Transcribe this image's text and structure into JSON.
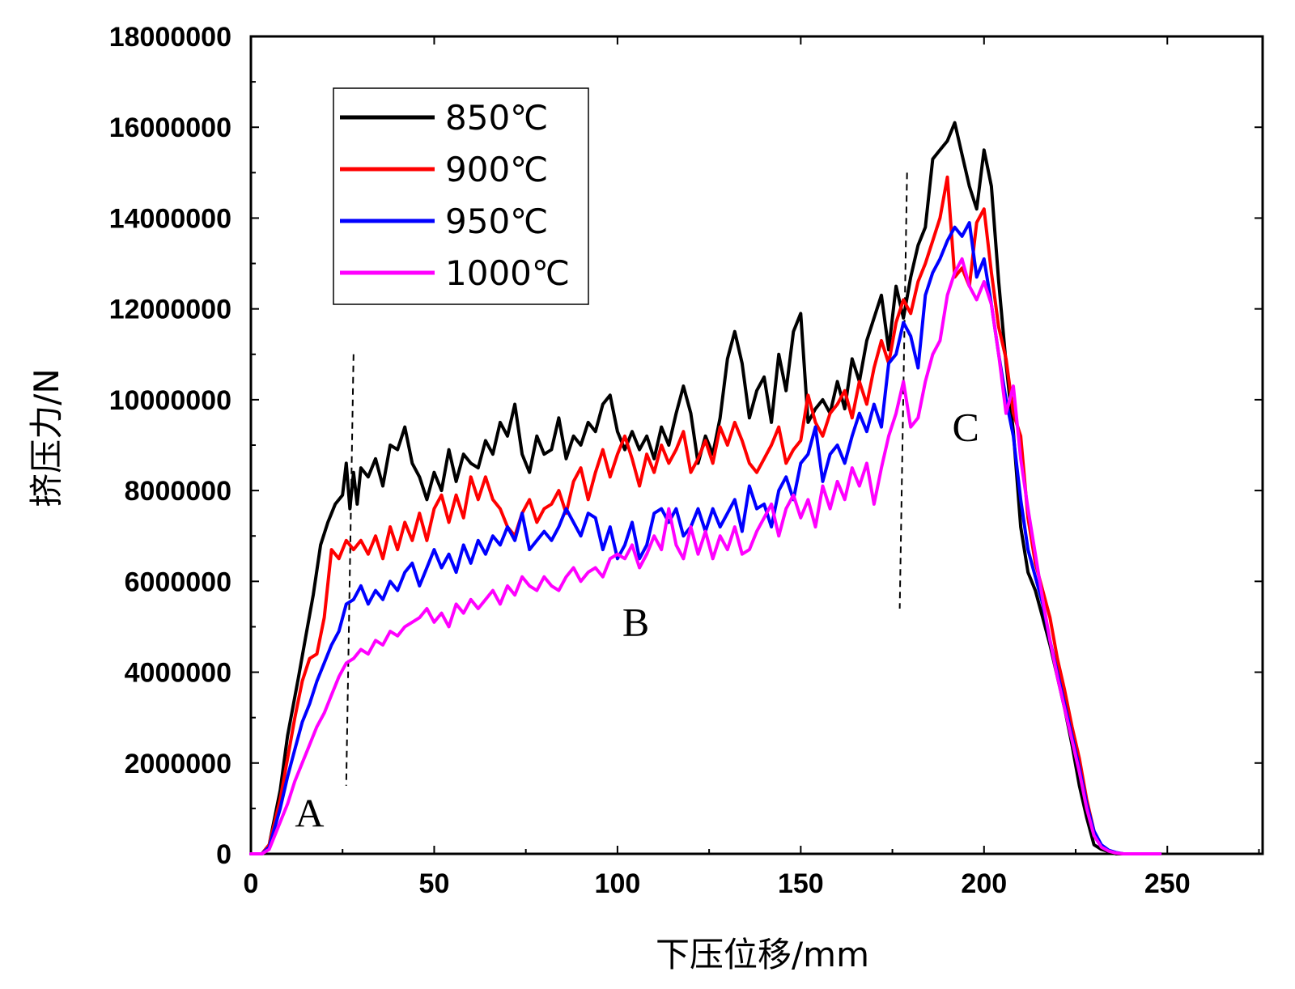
{
  "chart_data": {
    "type": "line",
    "title": "",
    "xlabel": "下压位移/mm",
    "ylabel": "挤压力/N",
    "xlim": [
      0,
      276
    ],
    "ylim": [
      0,
      18000000
    ],
    "xticks": [
      0,
      50,
      100,
      150,
      200,
      250
    ],
    "xtick_labels": [
      "0",
      "50",
      "100",
      "150",
      "200",
      "250"
    ],
    "yticks": [
      0,
      2000000,
      4000000,
      6000000,
      8000000,
      10000000,
      12000000,
      14000000,
      16000000,
      18000000
    ],
    "ytick_labels": [
      "0",
      "2000000",
      "4000000",
      "6000000",
      "8000000",
      "10000000",
      "12000000",
      "14000000",
      "16000000",
      "18000000"
    ],
    "legend_position": "top-left",
    "region_labels": [
      {
        "text": "A",
        "x": 16,
        "y": 600000
      },
      {
        "text": "B",
        "x": 105,
        "y": 4800000
      },
      {
        "text": "C",
        "x": 195,
        "y": 9100000
      }
    ],
    "dividers": [
      {
        "x_top": 28,
        "y_top": 11000000,
        "x_bottom": 26,
        "y_bottom": 1500000
      },
      {
        "x_top": 179,
        "y_top": 15000000,
        "x_bottom": 177,
        "y_bottom": 5400000
      }
    ],
    "series": [
      {
        "name": "850℃",
        "color": "#000000",
        "x": [
          0,
          3,
          5,
          8,
          10,
          13,
          15,
          17,
          19,
          21,
          23,
          25,
          26,
          27,
          28,
          29,
          30,
          32,
          34,
          36,
          38,
          40,
          42,
          44,
          46,
          48,
          50,
          52,
          54,
          56,
          58,
          60,
          62,
          64,
          66,
          68,
          70,
          72,
          74,
          76,
          78,
          80,
          82,
          84,
          86,
          88,
          90,
          92,
          94,
          96,
          98,
          100,
          102,
          104,
          106,
          108,
          110,
          112,
          114,
          116,
          118,
          120,
          122,
          124,
          126,
          128,
          130,
          132,
          134,
          136,
          138,
          140,
          142,
          144,
          146,
          148,
          150,
          152,
          154,
          156,
          158,
          160,
          162,
          164,
          166,
          168,
          170,
          172,
          174,
          176,
          178,
          180,
          182,
          184,
          186,
          188,
          190,
          192,
          194,
          196,
          198,
          200,
          202,
          204,
          206,
          208,
          210,
          212,
          214,
          216,
          218,
          220,
          222,
          224,
          226,
          228,
          230,
          232,
          234,
          236,
          238,
          240,
          242,
          244,
          246,
          248
        ],
        "values": [
          0,
          0,
          200000,
          1400000,
          2600000,
          3900000,
          4800000,
          5700000,
          6800000,
          7300000,
          7700000,
          7900000,
          8600000,
          7600000,
          8400000,
          7700000,
          8500000,
          8300000,
          8700000,
          8100000,
          9000000,
          8900000,
          9400000,
          8600000,
          8300000,
          7800000,
          8400000,
          8000000,
          8900000,
          8200000,
          8800000,
          8600000,
          8500000,
          9100000,
          8800000,
          9500000,
          9200000,
          9900000,
          8800000,
          8400000,
          9200000,
          8800000,
          8900000,
          9600000,
          8700000,
          9200000,
          9000000,
          9500000,
          9300000,
          9900000,
          10100000,
          9300000,
          8900000,
          9300000,
          8900000,
          9200000,
          8700000,
          9400000,
          9000000,
          9700000,
          10300000,
          9700000,
          8600000,
          9200000,
          8800000,
          9600000,
          10900000,
          11500000,
          10800000,
          9600000,
          10200000,
          10500000,
          9500000,
          11000000,
          10200000,
          11500000,
          11900000,
          9500000,
          9800000,
          10000000,
          9700000,
          10400000,
          9800000,
          10900000,
          10400000,
          11300000,
          11800000,
          12300000,
          11100000,
          12500000,
          11800000,
          12700000,
          13400000,
          13800000,
          15300000,
          15500000,
          15700000,
          16100000,
          15400000,
          14700000,
          14200000,
          15500000,
          14700000,
          12600000,
          10800000,
          9300000,
          7200000,
          6200000,
          5800000,
          5200000,
          4600000,
          3900000,
          3200000,
          2400000,
          1500000,
          800000,
          200000,
          100000,
          50000,
          0,
          0,
          0,
          0,
          0,
          0,
          0
        ]
      },
      {
        "name": "900℃",
        "color": "#ff0000",
        "x": [
          0,
          3,
          5,
          8,
          10,
          12,
          14,
          16,
          18,
          20,
          22,
          24,
          26,
          28,
          30,
          32,
          34,
          36,
          38,
          40,
          42,
          44,
          46,
          48,
          50,
          52,
          54,
          56,
          58,
          60,
          62,
          64,
          66,
          68,
          70,
          72,
          74,
          76,
          78,
          80,
          82,
          84,
          86,
          88,
          90,
          92,
          94,
          96,
          98,
          100,
          102,
          104,
          106,
          108,
          110,
          112,
          114,
          116,
          118,
          120,
          122,
          124,
          126,
          128,
          130,
          132,
          134,
          136,
          138,
          140,
          142,
          144,
          146,
          148,
          150,
          152,
          154,
          156,
          158,
          160,
          162,
          164,
          166,
          168,
          170,
          172,
          174,
          176,
          178,
          180,
          182,
          184,
          186,
          188,
          190,
          192,
          194,
          196,
          198,
          200,
          202,
          204,
          206,
          208,
          210,
          212,
          214,
          216,
          218,
          220,
          222,
          224,
          226,
          228,
          230,
          232,
          234,
          236,
          238,
          240,
          242,
          244,
          246,
          248
        ],
        "values": [
          0,
          0,
          200000,
          1200000,
          2100000,
          3000000,
          3800000,
          4300000,
          4400000,
          5200000,
          6700000,
          6500000,
          6900000,
          6700000,
          6900000,
          6600000,
          7000000,
          6500000,
          7200000,
          6700000,
          7300000,
          6900000,
          7500000,
          6900000,
          7600000,
          7900000,
          7300000,
          7900000,
          7400000,
          8300000,
          7800000,
          8300000,
          7800000,
          7600000,
          7200000,
          7000000,
          7500000,
          7800000,
          7300000,
          7600000,
          7700000,
          8000000,
          7500000,
          8200000,
          8500000,
          7800000,
          8400000,
          8900000,
          8300000,
          8800000,
          9200000,
          8700000,
          8100000,
          8800000,
          8400000,
          9000000,
          8600000,
          8900000,
          9300000,
          8400000,
          8700000,
          9100000,
          8600000,
          9400000,
          9000000,
          9500000,
          9100000,
          8600000,
          8400000,
          8700000,
          9000000,
          9400000,
          8600000,
          8900000,
          9100000,
          10100000,
          9500000,
          9200000,
          9700000,
          9900000,
          10200000,
          9600000,
          10400000,
          9900000,
          10700000,
          11300000,
          10800000,
          11700000,
          12200000,
          11900000,
          12600000,
          13000000,
          13500000,
          14000000,
          14900000,
          12700000,
          12900000,
          12500000,
          13900000,
          14200000,
          12800000,
          11600000,
          10900000,
          9700000,
          9200000,
          7400000,
          6400000,
          5800000,
          5200000,
          4300000,
          3600000,
          2800000,
          2100000,
          1200000,
          500000,
          150000,
          60000,
          20000,
          0,
          0,
          0,
          0,
          0,
          0
        ]
      },
      {
        "name": "950℃",
        "color": "#0000ff",
        "x": [
          0,
          3,
          5,
          8,
          10,
          12,
          14,
          16,
          18,
          20,
          22,
          24,
          26,
          28,
          30,
          32,
          34,
          36,
          38,
          40,
          42,
          44,
          46,
          48,
          50,
          52,
          54,
          56,
          58,
          60,
          62,
          64,
          66,
          68,
          70,
          72,
          74,
          76,
          78,
          80,
          82,
          84,
          86,
          88,
          90,
          92,
          94,
          96,
          98,
          100,
          102,
          104,
          106,
          108,
          110,
          112,
          114,
          116,
          118,
          120,
          122,
          124,
          126,
          128,
          130,
          132,
          134,
          136,
          138,
          140,
          142,
          144,
          146,
          148,
          150,
          152,
          154,
          156,
          158,
          160,
          162,
          164,
          166,
          168,
          170,
          172,
          174,
          176,
          178,
          180,
          182,
          184,
          186,
          188,
          190,
          192,
          194,
          196,
          198,
          200,
          202,
          204,
          206,
          208,
          210,
          212,
          214,
          216,
          218,
          220,
          222,
          224,
          226,
          228,
          230,
          232,
          234,
          236,
          238,
          240,
          242,
          244,
          246,
          248
        ],
        "values": [
          0,
          0,
          150000,
          1000000,
          1700000,
          2300000,
          2900000,
          3300000,
          3800000,
          4200000,
          4600000,
          4900000,
          5500000,
          5600000,
          5900000,
          5500000,
          5800000,
          5600000,
          6000000,
          5800000,
          6200000,
          6400000,
          5900000,
          6300000,
          6700000,
          6300000,
          6600000,
          6200000,
          6800000,
          6400000,
          6900000,
          6600000,
          7000000,
          6800000,
          7200000,
          6900000,
          7500000,
          6700000,
          6900000,
          7100000,
          6900000,
          7200000,
          7600000,
          7300000,
          7000000,
          7500000,
          7400000,
          6700000,
          7200000,
          6500000,
          6800000,
          7300000,
          6500000,
          6800000,
          7500000,
          7600000,
          7300000,
          7600000,
          7000000,
          7200000,
          7600000,
          7100000,
          7600000,
          7200000,
          7500000,
          7800000,
          7100000,
          8100000,
          7600000,
          7700000,
          7200000,
          8000000,
          8300000,
          7800000,
          8600000,
          8800000,
          9400000,
          8200000,
          8800000,
          9000000,
          8600000,
          9200000,
          9700000,
          9300000,
          9900000,
          9400000,
          10800000,
          11000000,
          11700000,
          11400000,
          10700000,
          12300000,
          12800000,
          13100000,
          13500000,
          13800000,
          13600000,
          13900000,
          12700000,
          13100000,
          12100000,
          11000000,
          10000000,
          9200000,
          7800000,
          6700000,
          6100000,
          5500000,
          4700000,
          4000000,
          3300000,
          2600000,
          1900000,
          1100000,
          500000,
          200000,
          80000,
          30000,
          0,
          0,
          0,
          0,
          0,
          0
        ]
      },
      {
        "name": "1000℃",
        "color": "#ff00ff",
        "x": [
          0,
          3,
          5,
          8,
          10,
          12,
          14,
          16,
          18,
          20,
          22,
          24,
          26,
          28,
          30,
          32,
          34,
          36,
          38,
          40,
          42,
          44,
          46,
          48,
          50,
          52,
          54,
          56,
          58,
          60,
          62,
          64,
          66,
          68,
          70,
          72,
          74,
          76,
          78,
          80,
          82,
          84,
          86,
          88,
          90,
          92,
          94,
          96,
          98,
          100,
          102,
          104,
          106,
          108,
          110,
          112,
          114,
          116,
          118,
          120,
          122,
          124,
          126,
          128,
          130,
          132,
          134,
          136,
          138,
          140,
          142,
          144,
          146,
          148,
          150,
          152,
          154,
          156,
          158,
          160,
          162,
          164,
          166,
          168,
          170,
          172,
          174,
          176,
          178,
          180,
          182,
          184,
          186,
          188,
          190,
          192,
          194,
          196,
          198,
          200,
          202,
          204,
          206,
          208,
          210,
          212,
          214,
          216,
          218,
          220,
          222,
          224,
          226,
          228,
          230,
          232,
          234,
          236,
          238,
          240,
          242,
          244,
          246,
          248
        ],
        "values": [
          0,
          0,
          100000,
          700000,
          1100000,
          1600000,
          2000000,
          2400000,
          2800000,
          3100000,
          3500000,
          3900000,
          4200000,
          4300000,
          4500000,
          4400000,
          4700000,
          4600000,
          4900000,
          4800000,
          5000000,
          5100000,
          5200000,
          5400000,
          5100000,
          5300000,
          5000000,
          5500000,
          5300000,
          5600000,
          5400000,
          5600000,
          5800000,
          5500000,
          5900000,
          5700000,
          6100000,
          5900000,
          5800000,
          6100000,
          5900000,
          5800000,
          6100000,
          6300000,
          6000000,
          6200000,
          6300000,
          6100000,
          6500000,
          6600000,
          6500000,
          6800000,
          6300000,
          6600000,
          7000000,
          6700000,
          7600000,
          6800000,
          6500000,
          7200000,
          6600000,
          7100000,
          6500000,
          7000000,
          6700000,
          7200000,
          6600000,
          6700000,
          7100000,
          7400000,
          7700000,
          7000000,
          7600000,
          7900000,
          7400000,
          7800000,
          7200000,
          8100000,
          7600000,
          8200000,
          7800000,
          8500000,
          8100000,
          8600000,
          7700000,
          8500000,
          9200000,
          9700000,
          10400000,
          9400000,
          9600000,
          10400000,
          11000000,
          11300000,
          12300000,
          12800000,
          13100000,
          12500000,
          12200000,
          12600000,
          12100000,
          11000000,
          9700000,
          10300000,
          8700000,
          7600000,
          6600000,
          5600000,
          4700000,
          3900000,
          3200000,
          2500000,
          1800000,
          1000000,
          400000,
          150000,
          60000,
          20000,
          0,
          0,
          0,
          0,
          0,
          0
        ]
      }
    ]
  }
}
